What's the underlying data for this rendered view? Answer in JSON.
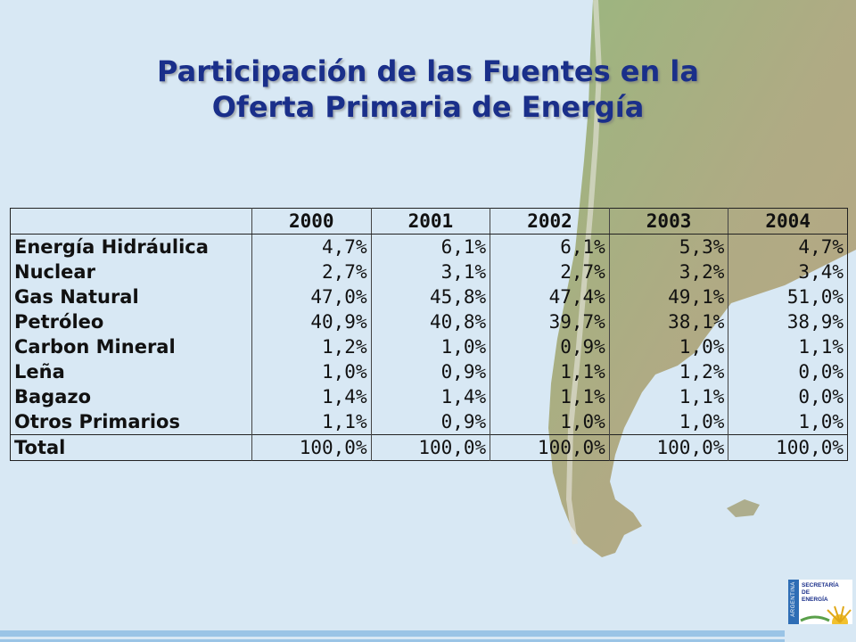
{
  "title": {
    "line1": "Participación de las Fuentes en la",
    "line2": "Oferta Primaria de Energía"
  },
  "table": {
    "years": [
      "2000",
      "2001",
      "2002",
      "2003",
      "2004"
    ],
    "rows": [
      {
        "label": "Energía Hidráulica",
        "values": [
          "4,7%",
          "6,1%",
          "6,1%",
          "5,3%",
          "4,7%"
        ]
      },
      {
        "label": "Nuclear",
        "values": [
          "2,7%",
          "3,1%",
          "2,7%",
          "3,2%",
          "3,4%"
        ]
      },
      {
        "label": "Gas Natural",
        "values": [
          "47,0%",
          "45,8%",
          "47,4%",
          "49,1%",
          "51,0%"
        ]
      },
      {
        "label": "Petróleo",
        "values": [
          "40,9%",
          "40,8%",
          "39,7%",
          "38,1%",
          "38,9%"
        ]
      },
      {
        "label": "Carbon Mineral",
        "values": [
          "1,2%",
          "1,0%",
          "0,9%",
          "1,0%",
          "1,1%"
        ]
      },
      {
        "label": "Leña",
        "values": [
          "1,0%",
          "0,9%",
          "1,1%",
          "1,2%",
          "0,0%"
        ]
      },
      {
        "label": "Bagazo",
        "values": [
          "1,4%",
          "1,4%",
          "1,1%",
          "1,1%",
          "0,0%"
        ]
      },
      {
        "label": "Otros Primarios",
        "values": [
          "1,1%",
          "0,9%",
          "1,0%",
          "1,0%",
          "1,0%"
        ]
      }
    ],
    "total": {
      "label": "Total",
      "values": [
        "100,0%",
        "100,0%",
        "100,0%",
        "100,0%",
        "100,0%"
      ]
    }
  },
  "logo": {
    "side_text": "ARGENTINA",
    "line1": "SECRETARÍA",
    "line2": "DE",
    "line3": "ENERGÍA"
  },
  "colors": {
    "title": "#1a2f8a",
    "ocean": "#d8e8f4",
    "land": "#8aa868",
    "bar": "#9ac4e6"
  }
}
